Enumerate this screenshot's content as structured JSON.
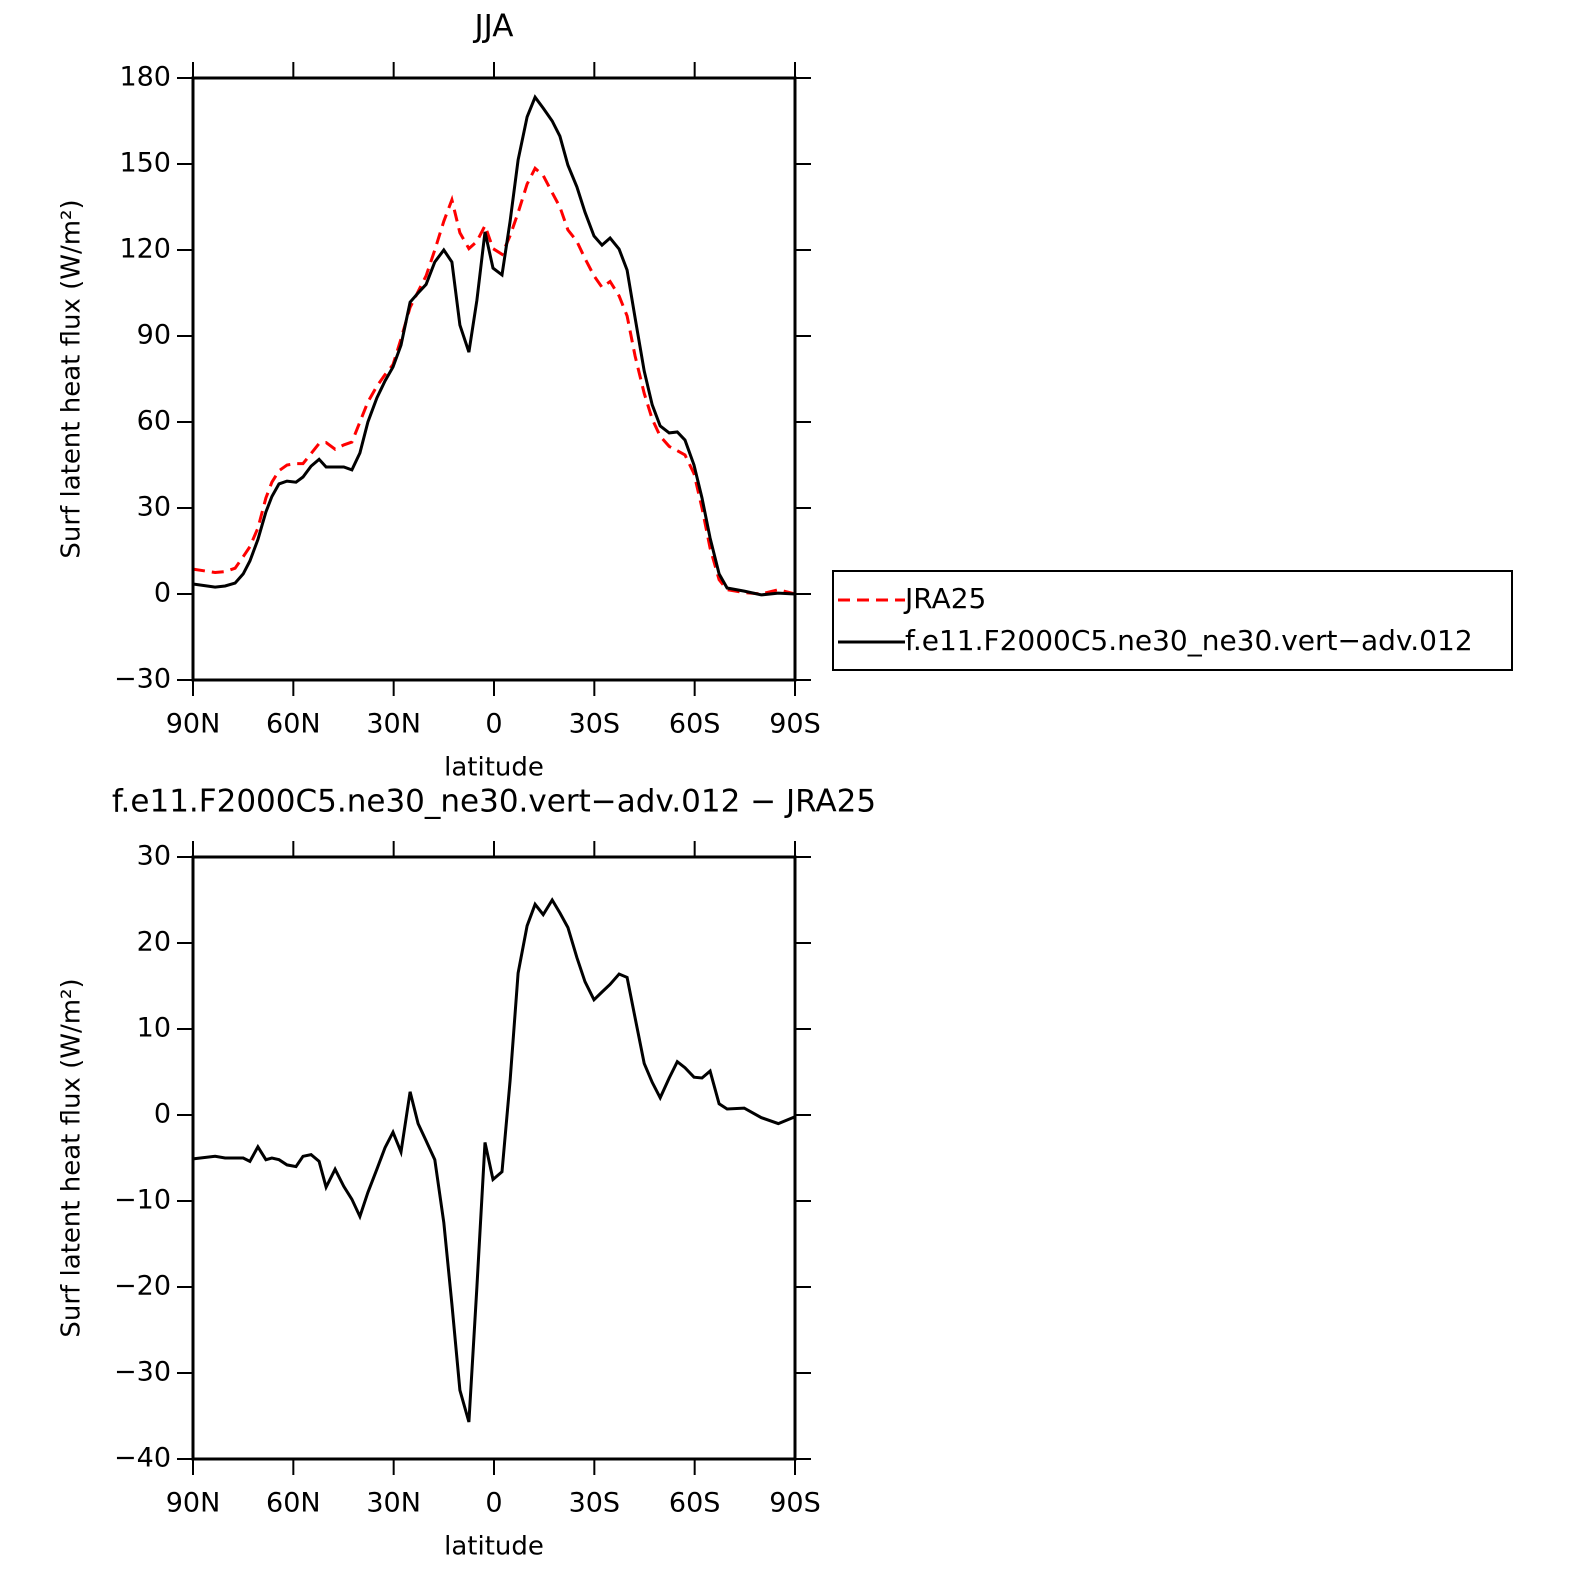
{
  "chart_data": [
    {
      "type": "line",
      "title": "JJA",
      "x_label": "latitude",
      "y_label": "Surf latent heat flux (W/m²)",
      "x": [
        90,
        83.4,
        80.4,
        77.4,
        75,
        73,
        70.6,
        68.2,
        66.4,
        64.3,
        61.9,
        59.2,
        57.1,
        54.7,
        52.3,
        50.2,
        47.5,
        44.9,
        42.5,
        40.1,
        37.7,
        35,
        32.6,
        30.2,
        27.8,
        25.1,
        22.7,
        20.3,
        17.7,
        15,
        12.6,
        10.2,
        7.5,
        5.1,
        2.7,
        0.3,
        -2.4,
        -4.8,
        -7.2,
        -9.9,
        -12.3,
        -14.7,
        -17.4,
        -19.7,
        -22.1,
        -24.8,
        -27.2,
        -29.9,
        -32.3,
        -34.7,
        -37.4,
        -39.8,
        -42.2,
        -44.9,
        -47.3,
        -49.7,
        -52.4,
        -54.8,
        -57.1,
        -59.8,
        -62.2,
        -64.6,
        -67.3,
        -69.7,
        -74.8,
        -79.9,
        -85,
        -90
      ],
      "series": [
        {
          "name": "JRA25",
          "color": "#ff0000",
          "dashed": true,
          "values": [
            8.7,
            7.5,
            7.8,
            9,
            13,
            16.5,
            23,
            33.5,
            39,
            43,
            45,
            45.5,
            45.5,
            49,
            52.5,
            52.8,
            50.5,
            52,
            53,
            60,
            67,
            72.5,
            76.5,
            80,
            89,
            100,
            105.5,
            111,
            120,
            130,
            137.5,
            126,
            120.5,
            123,
            128.5,
            120.5,
            118.5,
            125,
            133,
            143,
            148.5,
            146,
            140,
            135,
            127,
            123,
            117,
            111,
            107,
            109,
            104,
            97,
            83,
            70,
            61,
            55,
            51.5,
            50,
            48.5,
            42,
            30,
            16,
            5,
            1.5,
            0.5,
            0,
            1.5,
            0
          ]
        },
        {
          "name": "f.e11.F2000C5.ne30_ne30.vert−adv.012",
          "color": "#000000",
          "dashed": false,
          "values": [
            3.5,
            2.4,
            2.8,
            3.8,
            7,
            11.5,
            19,
            28.6,
            34,
            38.4,
            39.4,
            39,
            40.8,
            44.6,
            47,
            44.3,
            44.3,
            44.3,
            43.3,
            49.2,
            60,
            68.4,
            74.3,
            79.2,
            86.8,
            101.8,
            105,
            108,
            115.8,
            120,
            115.8,
            93.8,
            84.4,
            102.5,
            126.3,
            113.7,
            111.3,
            130,
            151.4,
            166.4,
            173.3,
            169.5,
            165,
            159.7,
            149.6,
            142,
            133.2,
            124.9,
            121.7,
            124.2,
            120.3,
            113,
            96.3,
            77.8,
            66,
            58.6,
            56.2,
            56.5,
            53.7,
            45,
            33.5,
            19.5,
            7,
            2.1,
            1,
            -0.3,
            0.3,
            0
          ]
        }
      ],
      "xlim": [
        90,
        -90
      ],
      "xticks": [
        {
          "value": 90,
          "label": "90N"
        },
        {
          "value": 60,
          "label": "60N"
        },
        {
          "value": 30,
          "label": "30N"
        },
        0,
        {
          "value": -30,
          "label": "30S"
        },
        {
          "value": -60,
          "label": "60S"
        },
        {
          "value": -90,
          "label": "90S"
        }
      ],
      "ylim": [
        -30,
        180
      ],
      "yticks": [
        {
          "value": -30,
          "label": "−30"
        },
        0,
        30,
        60,
        90,
        120,
        150,
        180
      ]
    },
    {
      "type": "line",
      "title": "f.e11.F2000C5.ne30_ne30.vert−adv.012 − JRA25",
      "x_label": "latitude",
      "y_label": "Surf latent heat flux (W/m²)",
      "x": [
        90,
        83.4,
        80.4,
        77.4,
        75,
        73,
        70.6,
        68.2,
        66.4,
        64.3,
        61.9,
        59.2,
        57.1,
        54.7,
        52.3,
        50.2,
        47.5,
        44.9,
        42.5,
        40.1,
        37.7,
        35,
        32.6,
        30.2,
        27.8,
        25.1,
        22.7,
        20.3,
        17.7,
        15,
        12.6,
        10.2,
        7.5,
        5.1,
        2.7,
        0.3,
        -2.4,
        -4.8,
        -7.2,
        -9.9,
        -12.3,
        -14.7,
        -17.4,
        -19.7,
        -22.1,
        -24.8,
        -27.2,
        -29.9,
        -32.3,
        -34.7,
        -37.4,
        -39.8,
        -42.2,
        -44.9,
        -47.3,
        -49.7,
        -52.4,
        -54.8,
        -57.1,
        -59.8,
        -62.2,
        -64.6,
        -67.3,
        -69.7,
        -74.8,
        -79.9,
        -85,
        -90
      ],
      "series": [
        {
          "name": null,
          "color": "#000000",
          "dashed": false,
          "values": [
            -5.1,
            -4.8,
            -5,
            -5,
            -5,
            -5.4,
            -3.7,
            -5.2,
            -5,
            -5.2,
            -5.8,
            -6,
            -4.8,
            -4.6,
            -5.4,
            -8.4,
            -6.3,
            -8.3,
            -9.8,
            -11.8,
            -9,
            -6.3,
            -3.8,
            -2,
            -4.3,
            2.7,
            -1,
            -3,
            -5.2,
            -12.5,
            -22,
            -32,
            -35.7,
            -20,
            -3.2,
            -7.5,
            -6.6,
            4,
            16.5,
            22,
            24.5,
            23.3,
            25,
            23.5,
            21.8,
            18.3,
            15.5,
            13.4,
            14.3,
            15.2,
            16.4,
            16,
            11.3,
            6,
            3.8,
            2,
            4.3,
            6.2,
            5.5,
            4.4,
            4.3,
            5.1,
            1.3,
            0.7,
            0.8,
            -0.3,
            -1,
            -0.2
          ]
        }
      ],
      "xlim": [
        90,
        -90
      ],
      "xticks": [
        {
          "value": 90,
          "label": "90N"
        },
        {
          "value": 60,
          "label": "60N"
        },
        {
          "value": 30,
          "label": "30N"
        },
        0,
        {
          "value": -30,
          "label": "30S"
        },
        {
          "value": -60,
          "label": "60S"
        },
        {
          "value": -90,
          "label": "90S"
        }
      ],
      "ylim": [
        -40,
        30
      ],
      "yticks": [
        {
          "value": -40,
          "label": "−40"
        },
        {
          "value": -30,
          "label": "−30"
        },
        {
          "value": -20,
          "label": "−20"
        },
        {
          "value": -10,
          "label": "−10"
        },
        0,
        10,
        20,
        30
      ]
    }
  ]
}
